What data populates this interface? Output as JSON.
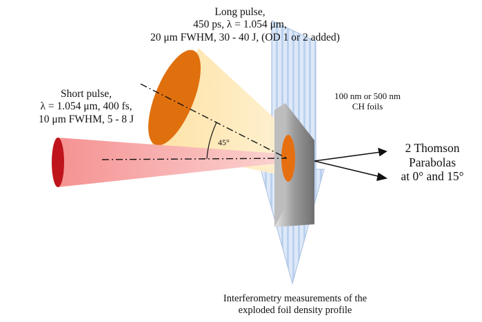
{
  "long_pulse": {
    "line1": "Long pulse,",
    "line2": "450 ps, λ = 1.054 μm,",
    "line3": "20 μm FWHM, 30 - 40 J, (OD 1 or 2 added)"
  },
  "short_pulse": {
    "line1": "Short pulse,",
    "line2": "λ = 1.054 μm, 400 fs,",
    "line3": "10 μm FWHM, 5 - 8 J"
  },
  "foils": {
    "line1": "100 nm or 500 nm",
    "line2": "CH foils"
  },
  "thomson": {
    "line1": "2 Thomson",
    "line2": "Parabolas",
    "line3": "at 0° and 15°"
  },
  "interferometry": {
    "line1": "Interferometry measurements of the",
    "line2": "exploded foil density profile"
  },
  "angle": "45°",
  "colors": {
    "short_beam": "#f7a8a8",
    "short_beam_end": "#c0141c",
    "long_beam": "#fde7b0",
    "long_beam_end": "#e0700e",
    "probe_arrow": "#cfe0f5",
    "foil": "#9a9a9a"
  }
}
